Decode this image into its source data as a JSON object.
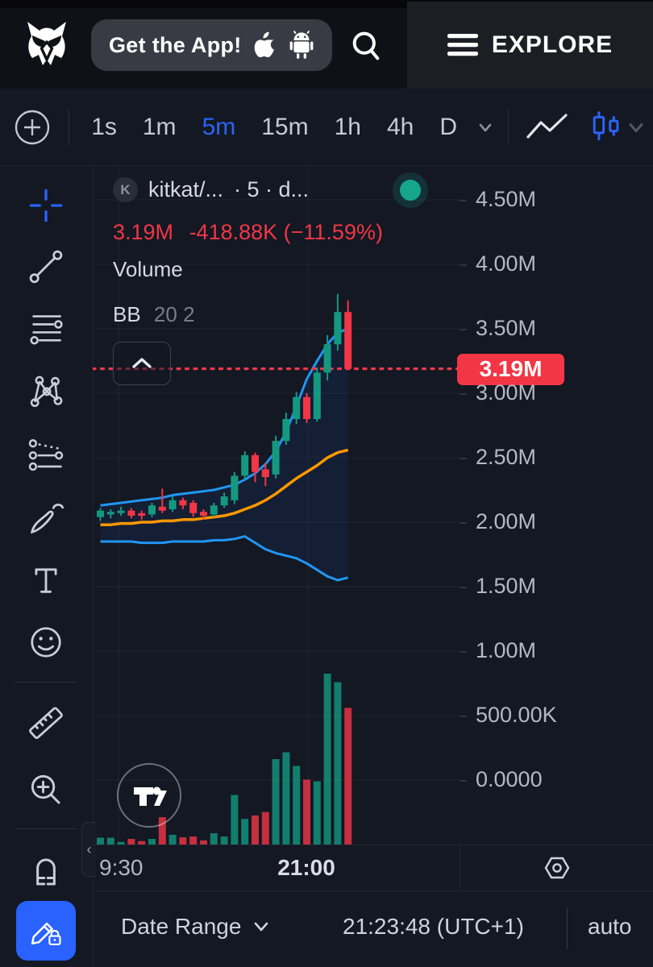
{
  "topbar": {
    "get_app": "Get the App!",
    "explore": "EXPLORE"
  },
  "toolbar": {
    "timeframes": [
      "1s",
      "1m",
      "5m",
      "15m",
      "1h",
      "4h",
      "D"
    ],
    "active": "5m"
  },
  "header": {
    "avatar": "K",
    "symbol": "kitkat/...",
    "meta": "· 5 · d...",
    "price": "3.19M",
    "change": "-418.88K (−11.59%)",
    "volume_label": "Volume",
    "indicator": "BB",
    "indicator_params": "20 2"
  },
  "price_axis": {
    "labels": [
      {
        "text": "4.50M",
        "value": 4.5
      },
      {
        "text": "4.00M",
        "value": 4.0
      },
      {
        "text": "3.50M",
        "value": 3.5
      },
      {
        "text": "3.00M",
        "value": 3.0
      },
      {
        "text": "2.50M",
        "value": 2.5
      },
      {
        "text": "2.00M",
        "value": 2.0
      },
      {
        "text": "1.50M",
        "value": 1.5
      },
      {
        "text": "1.00M",
        "value": 1.0
      },
      {
        "text": "500.00K",
        "value": 0.5
      },
      {
        "text": "0.0000",
        "value": 0.0
      }
    ],
    "last_price_label": "3.19M"
  },
  "time_axis": {
    "labels": [
      "9:30",
      "21:00"
    ]
  },
  "bottom_bar": {
    "date_range": "Date Range",
    "clock": "21:23:48 (UTC+1)",
    "auto": "auto"
  },
  "colors": {
    "up": "#149980",
    "down": "#f23645",
    "bb_band": "#2196f3",
    "bb_basis": "#ff9800",
    "accent": "#2962ff",
    "last_price_line": "#f2364a"
  },
  "icons": [
    "owl-logo-icon",
    "apple-icon",
    "android-icon",
    "search-icon",
    "hamburger-icon",
    "plus-circle-icon",
    "chevron-down-icon",
    "line-chart-icon",
    "candlestick-icon",
    "crosshair-icon",
    "trend-line-icon",
    "horizontal-lines-icon",
    "xabcd-pattern-icon",
    "projection-icon",
    "brush-icon",
    "text-tool-icon",
    "emoji-icon",
    "ruler-icon",
    "zoom-in-icon",
    "magnet-icon",
    "pencil-lock-icon",
    "chevron-up-icon",
    "chevron-left-icon",
    "settings-hex-icon",
    "tradingview-logo-icon"
  ],
  "chart_data": {
    "type": "candlestick",
    "title": "kitkat/... 5m with volume and Bollinger Bands (20,2)",
    "interval": "5m",
    "last_price": 3.19,
    "y_axis": {
      "unit": "M",
      "gridline_prices": [
        4.5,
        4.0,
        3.5,
        3.0,
        2.5,
        2.0,
        1.5,
        1.0,
        0.5,
        0.0
      ]
    },
    "x_axis": {
      "labels": [
        "9:30",
        "21:00"
      ],
      "gridline_x": [
        32,
        267
      ]
    },
    "candles": [
      {
        "o": 2.04,
        "h": 2.11,
        "l": 2.01,
        "c": 2.09
      },
      {
        "o": 2.06,
        "h": 2.1,
        "l": 2.03,
        "c": 2.08
      },
      {
        "o": 2.07,
        "h": 2.12,
        "l": 2.05,
        "c": 2.09
      },
      {
        "o": 2.09,
        "h": 2.11,
        "l": 2.03,
        "c": 2.05
      },
      {
        "o": 2.07,
        "h": 2.09,
        "l": 2.02,
        "c": 2.05
      },
      {
        "o": 2.06,
        "h": 2.15,
        "l": 2.04,
        "c": 2.13
      },
      {
        "o": 2.12,
        "h": 2.26,
        "l": 2.07,
        "c": 2.09
      },
      {
        "o": 2.1,
        "h": 2.2,
        "l": 2.08,
        "c": 2.17
      },
      {
        "o": 2.17,
        "h": 2.19,
        "l": 2.1,
        "c": 2.13
      },
      {
        "o": 2.15,
        "h": 2.17,
        "l": 2.04,
        "c": 2.07
      },
      {
        "o": 2.08,
        "h": 2.1,
        "l": 2.02,
        "c": 2.05
      },
      {
        "o": 2.06,
        "h": 2.15,
        "l": 2.04,
        "c": 2.13
      },
      {
        "o": 2.13,
        "h": 2.23,
        "l": 2.11,
        "c": 2.2
      },
      {
        "o": 2.17,
        "h": 2.39,
        "l": 2.14,
        "c": 2.36
      },
      {
        "o": 2.36,
        "h": 2.55,
        "l": 2.33,
        "c": 2.52
      },
      {
        "o": 2.52,
        "h": 2.54,
        "l": 2.31,
        "c": 2.39
      },
      {
        "o": 2.41,
        "h": 2.46,
        "l": 2.28,
        "c": 2.35
      },
      {
        "o": 2.37,
        "h": 2.67,
        "l": 2.34,
        "c": 2.63
      },
      {
        "o": 2.63,
        "h": 2.85,
        "l": 2.6,
        "c": 2.8
      },
      {
        "o": 2.8,
        "h": 3.01,
        "l": 2.76,
        "c": 2.97
      },
      {
        "o": 2.97,
        "h": 3.0,
        "l": 2.77,
        "c": 2.8
      },
      {
        "o": 2.8,
        "h": 3.2,
        "l": 2.78,
        "c": 3.16
      },
      {
        "o": 3.16,
        "h": 3.45,
        "l": 3.1,
        "c": 3.38
      },
      {
        "o": 3.38,
        "h": 3.77,
        "l": 3.33,
        "c": 3.63
      },
      {
        "o": 3.63,
        "h": 3.72,
        "l": 3.19,
        "c": 3.19
      }
    ],
    "volume_relative": [
      0.04,
      0.04,
      0.015,
      0.033,
      0.02,
      0.033,
      0.16,
      0.057,
      0.042,
      0.047,
      0.024,
      0.066,
      0.047,
      0.29,
      0.15,
      0.17,
      0.19,
      0.5,
      0.54,
      0.46,
      0.38,
      0.37,
      1.0,
      0.95,
      0.8
    ],
    "bollinger": {
      "upper": [
        2.13,
        2.14,
        2.15,
        2.16,
        2.17,
        2.18,
        2.19,
        2.21,
        2.22,
        2.23,
        2.24,
        2.25,
        2.27,
        2.29,
        2.33,
        2.38,
        2.45,
        2.55,
        2.7,
        2.9,
        3.11,
        3.25,
        3.38,
        3.47,
        3.5
      ],
      "basis": [
        1.98,
        1.98,
        1.99,
        1.99,
        2.0,
        2.0,
        2.01,
        2.01,
        2.02,
        2.02,
        2.03,
        2.04,
        2.05,
        2.07,
        2.1,
        2.13,
        2.17,
        2.22,
        2.28,
        2.34,
        2.39,
        2.44,
        2.5,
        2.54,
        2.56
      ],
      "lower": [
        1.85,
        1.85,
        1.85,
        1.85,
        1.84,
        1.84,
        1.84,
        1.85,
        1.85,
        1.85,
        1.85,
        1.86,
        1.86,
        1.87,
        1.89,
        1.84,
        1.79,
        1.76,
        1.74,
        1.72,
        1.68,
        1.63,
        1.58,
        1.55,
        1.57
      ]
    }
  }
}
